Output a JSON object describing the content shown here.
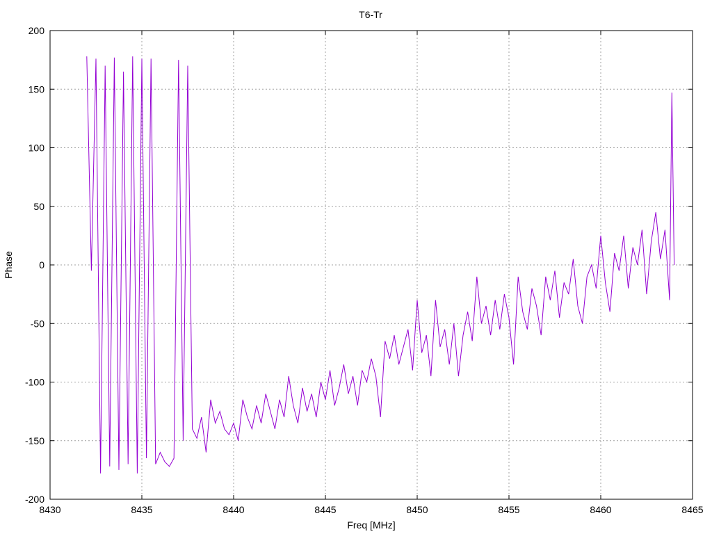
{
  "chart_data": {
    "type": "line",
    "title": "T6-Tr",
    "xlabel": "Freq [MHz]",
    "ylabel": "Phase",
    "xlim": [
      8430,
      8465
    ],
    "ylim": [
      -200,
      200
    ],
    "xticks": [
      8430,
      8435,
      8440,
      8445,
      8450,
      8455,
      8460,
      8465
    ],
    "yticks": [
      -200,
      -150,
      -100,
      -50,
      0,
      50,
      100,
      150,
      200
    ],
    "grid": true,
    "legend": "none",
    "series": [
      {
        "name": "T6-Tr",
        "color": "#9400d3",
        "x": [
          8432.0,
          8432.25,
          8432.5,
          8432.75,
          8433.0,
          8433.25,
          8433.5,
          8433.75,
          8434.0,
          8434.25,
          8434.5,
          8434.75,
          8435.0,
          8435.25,
          8435.5,
          8435.75,
          8436.0,
          8436.25,
          8436.5,
          8436.75,
          8437.0,
          8437.25,
          8437.5,
          8437.75,
          8438.0,
          8438.25,
          8438.5,
          8438.75,
          8439.0,
          8439.25,
          8439.5,
          8439.75,
          8440.0,
          8440.25,
          8440.5,
          8440.75,
          8441.0,
          8441.25,
          8441.5,
          8441.75,
          8442.0,
          8442.25,
          8442.5,
          8442.75,
          8443.0,
          8443.25,
          8443.5,
          8443.75,
          8444.0,
          8444.25,
          8444.5,
          8444.75,
          8445.0,
          8445.25,
          8445.5,
          8445.75,
          8446.0,
          8446.25,
          8446.5,
          8446.75,
          8447.0,
          8447.25,
          8447.5,
          8447.75,
          8448.0,
          8448.25,
          8448.5,
          8448.75,
          8449.0,
          8449.25,
          8449.5,
          8449.75,
          8450.0,
          8450.25,
          8450.5,
          8450.75,
          8451.0,
          8451.25,
          8451.5,
          8451.75,
          8452.0,
          8452.25,
          8452.5,
          8452.75,
          8453.0,
          8453.25,
          8453.5,
          8453.75,
          8454.0,
          8454.25,
          8454.5,
          8454.75,
          8455.0,
          8455.25,
          8455.5,
          8455.75,
          8456.0,
          8456.25,
          8456.5,
          8456.75,
          8457.0,
          8457.25,
          8457.5,
          8457.75,
          8458.0,
          8458.25,
          8458.5,
          8458.75,
          8459.0,
          8459.25,
          8459.5,
          8459.75,
          8460.0,
          8460.25,
          8460.5,
          8460.75,
          8461.0,
          8461.25,
          8461.5,
          8461.75,
          8462.0,
          8462.25,
          8462.5,
          8462.75,
          8463.0,
          8463.25,
          8463.5,
          8463.75,
          8463.875,
          8464.0
        ],
        "y": [
          178,
          -5,
          176,
          -178,
          170,
          -172,
          177,
          -175,
          165,
          -170,
          178,
          -178,
          176,
          -165,
          176,
          -170,
          -160,
          -168,
          -172,
          -165,
          175,
          -150,
          170,
          -140,
          -148,
          -130,
          -160,
          -115,
          -135,
          -125,
          -140,
          -145,
          -135,
          -150,
          -115,
          -130,
          -140,
          -120,
          -135,
          -110,
          -125,
          -140,
          -115,
          -130,
          -95,
          -120,
          -135,
          -105,
          -125,
          -110,
          -130,
          -100,
          -115,
          -90,
          -120,
          -105,
          -85,
          -110,
          -95,
          -120,
          -90,
          -100,
          -80,
          -95,
          -130,
          -65,
          -80,
          -60,
          -85,
          -70,
          -55,
          -90,
          -30,
          -75,
          -60,
          -95,
          -30,
          -70,
          -55,
          -85,
          -50,
          -95,
          -60,
          -40,
          -65,
          -10,
          -50,
          -35,
          -60,
          -30,
          -55,
          -25,
          -45,
          -85,
          -10,
          -40,
          -55,
          -20,
          -35,
          -60,
          -10,
          -30,
          -5,
          -45,
          -15,
          -25,
          5,
          -35,
          -50,
          -10,
          0,
          -20,
          25,
          -15,
          -40,
          10,
          -5,
          25,
          -20,
          15,
          0,
          30,
          -25,
          20,
          45,
          5,
          30,
          -30,
          147,
          0
        ]
      }
    ]
  }
}
